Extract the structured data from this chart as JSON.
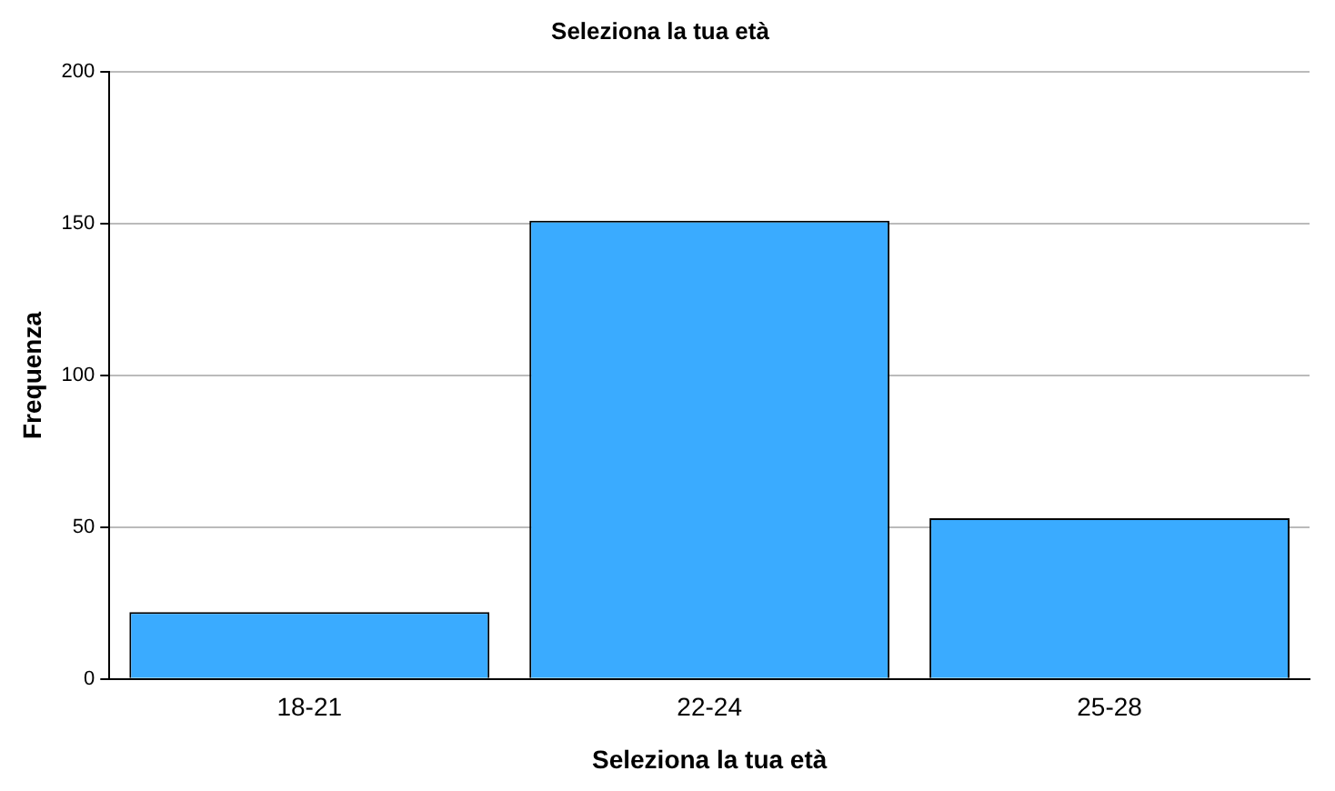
{
  "chart_data": {
    "type": "bar",
    "title": "Seleziona la tua età",
    "xlabel": "Seleziona la tua età",
    "ylabel": "Frequenza",
    "categories": [
      "18-21",
      "22-24",
      "25-28"
    ],
    "values": [
      22,
      151,
      53
    ],
    "color": "#3aabff",
    "ylim": [
      0,
      200
    ],
    "yticks": [
      0,
      50,
      100,
      150,
      200
    ],
    "grid": "y",
    "legend": false
  }
}
